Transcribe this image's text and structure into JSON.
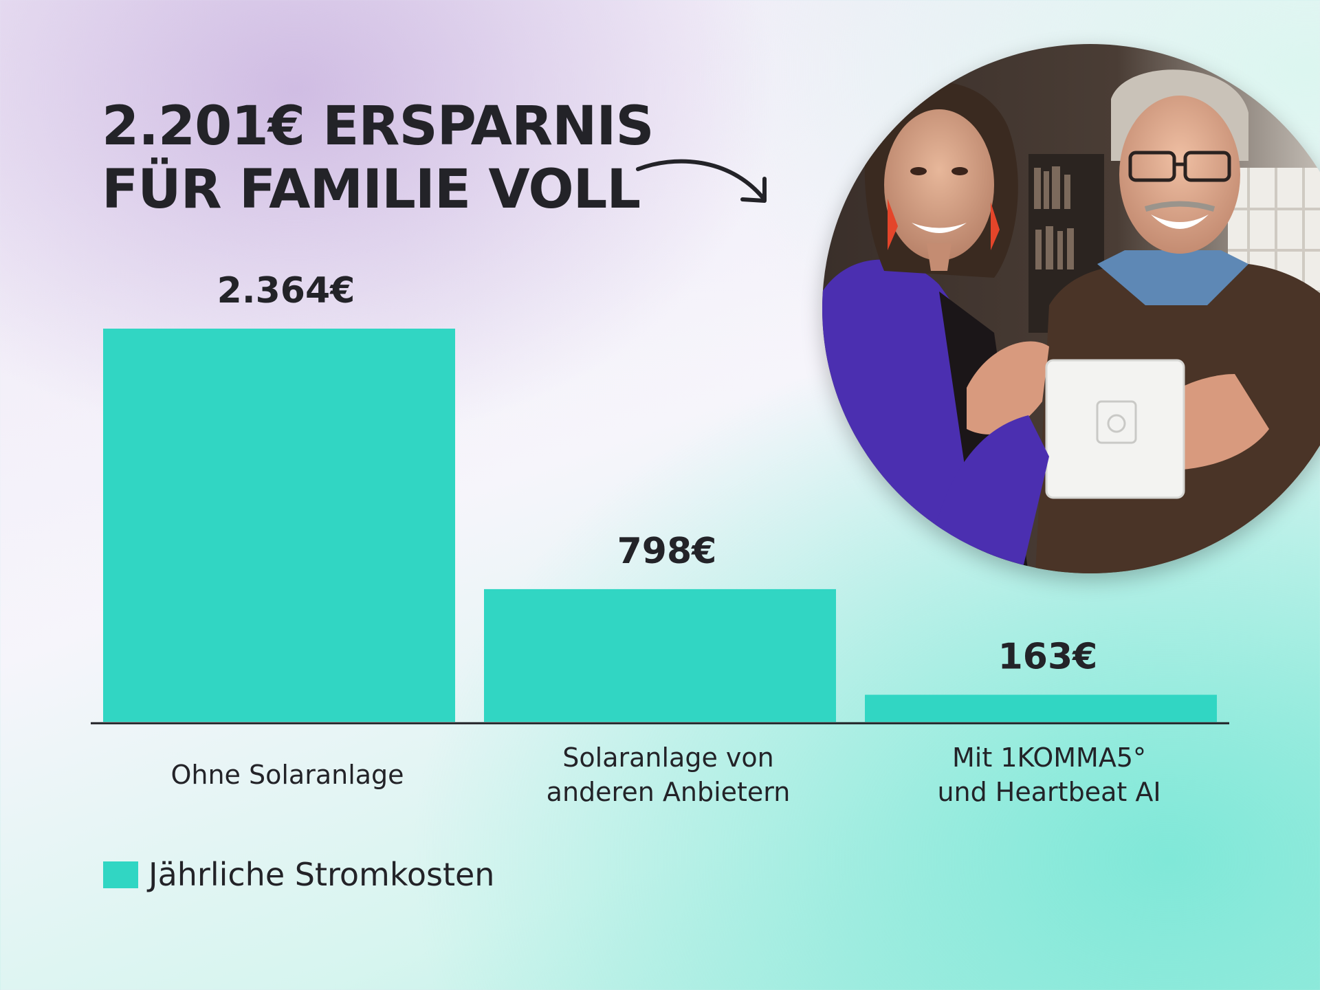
{
  "headline": {
    "line1": "2.201€ ERSPARNIS",
    "line2": "FÜR FAMILIE VOLL"
  },
  "chart_data": {
    "type": "bar",
    "categories": [
      [
        "Ohne Solaranlage"
      ],
      [
        "Solaranlage von",
        "anderen Anbietern"
      ],
      [
        "Mit 1KOMMA5°",
        "und Heartbeat AI"
      ]
    ],
    "series": [
      {
        "name": "Jährliche Stromkosten",
        "values": [
          2364,
          798,
          163
        ],
        "labels": [
          "2.364€",
          "798€",
          "163€"
        ]
      }
    ],
    "ylim": [
      0,
      2364
    ],
    "grid": false,
    "legend_position": "bottom-left",
    "bar_color": "#31d6c3",
    "axis_color": "#1f1f24"
  },
  "colors": {
    "bar": "#31d6c3",
    "text": "#232328"
  },
  "photo": {
    "icon": "family-holding-device-photo"
  }
}
